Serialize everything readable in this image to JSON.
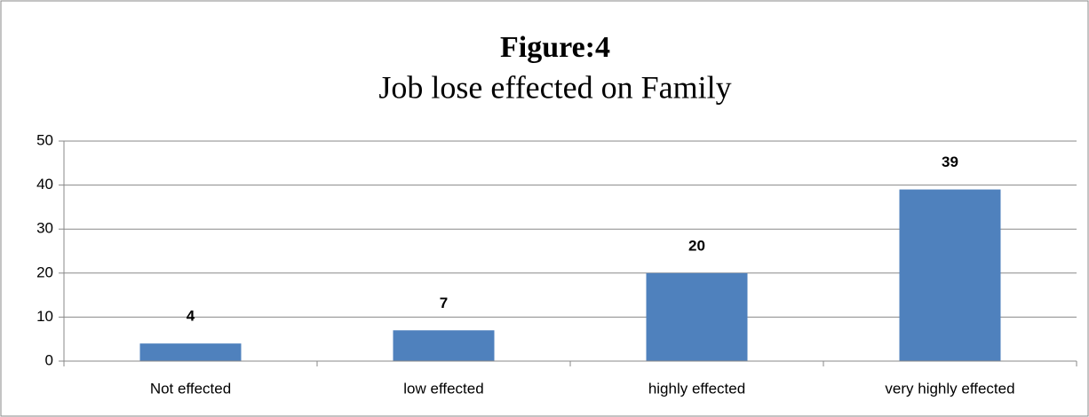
{
  "chart_data": {
    "type": "bar",
    "title": "Figure:4",
    "subtitle": "Job lose effected on Family",
    "categories": [
      "Not effected",
      "low effected",
      "highly effected",
      "very highly effected"
    ],
    "values": [
      4,
      7,
      20,
      39
    ],
    "color": "#4f81bd",
    "ylim": [
      0,
      50
    ],
    "yticks": [
      0,
      10,
      20,
      30,
      40,
      50
    ],
    "grid": true
  }
}
